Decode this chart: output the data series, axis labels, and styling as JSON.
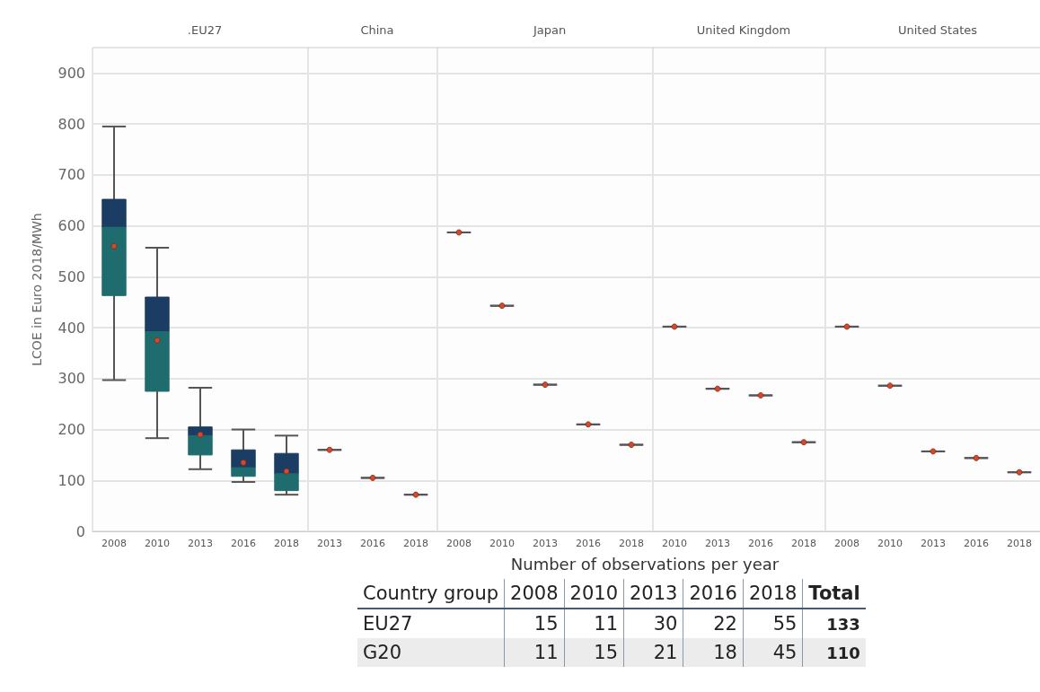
{
  "chart_data": [
    {
      "type": "box",
      "title": ".EU27",
      "ylabel": "LCOE in Euro 2018/MWh",
      "categories": [
        "2008",
        "2010",
        "2013",
        "2016",
        "2018"
      ],
      "color": "#1b3d63",
      "colors": [
        "#1f6c6f",
        "#1f6c6f",
        "#1f6c6f",
        "#1f6c6f",
        "#1f6c6f"
      ],
      "ylim": [
        0,
        950
      ],
      "yticks": [
        0,
        100,
        200,
        300,
        400,
        500,
        600,
        700,
        800,
        900
      ],
      "grid": "y",
      "boxes": [
        {
          "low": 297,
          "q1": 463,
          "median": 597,
          "q3": 652,
          "high": 795,
          "mean": 560
        },
        {
          "low": 183,
          "q1": 275,
          "median": 392,
          "q3": 460,
          "high": 557,
          "mean": 375
        },
        {
          "low": 122,
          "q1": 150,
          "median": 188,
          "q3": 205,
          "high": 282,
          "mean": 190
        },
        {
          "low": 97,
          "q1": 108,
          "median": 125,
          "q3": 160,
          "high": 200,
          "mean": 135
        },
        {
          "low": 72,
          "q1": 80,
          "median": 113,
          "q3": 153,
          "high": 188,
          "mean": 118
        }
      ]
    },
    {
      "type": "box",
      "title": "China",
      "categories": [
        "2013",
        "2016",
        "2018"
      ],
      "ylim": [
        0,
        950
      ],
      "yticks": [
        0,
        100,
        200,
        300,
        400,
        500,
        600,
        700,
        800,
        900
      ],
      "grid": "y",
      "tick_labels": "x",
      "boxes": [
        {
          "low": 160,
          "q1": 160,
          "median": 160,
          "q3": 160,
          "high": 160,
          "mean": 160
        },
        {
          "low": 105,
          "q1": 105,
          "median": 105,
          "q3": 105,
          "high": 105,
          "mean": 105
        },
        {
          "low": 72,
          "q1": 72,
          "median": 72,
          "q3": 72,
          "high": 72,
          "mean": 72
        }
      ]
    },
    {
      "type": "box",
      "title": "Japan",
      "categories": [
        "2008",
        "2010",
        "2013",
        "2016",
        "2018"
      ],
      "ylim": [
        0,
        950
      ],
      "yticks": [
        0,
        100,
        200,
        300,
        400,
        500,
        600,
        700,
        800,
        900
      ],
      "grid": "y",
      "tick_labels": "x",
      "boxes": [
        {
          "low": 587,
          "q1": 587,
          "median": 587,
          "q3": 587,
          "high": 587,
          "mean": 587
        },
        {
          "low": 443,
          "q1": 443,
          "median": 443,
          "q3": 443,
          "high": 443,
          "mean": 443
        },
        {
          "low": 288,
          "q1": 288,
          "median": 288,
          "q3": 288,
          "high": 288,
          "mean": 288
        },
        {
          "low": 210,
          "q1": 210,
          "median": 210,
          "q3": 210,
          "high": 210,
          "mean": 210
        },
        {
          "low": 170,
          "q1": 170,
          "median": 170,
          "q3": 170,
          "high": 170,
          "mean": 170
        }
      ]
    },
    {
      "type": "box",
      "title": "United Kingdom",
      "categories": [
        "2010",
        "2013",
        "2016",
        "2018"
      ],
      "ylim": [
        0,
        950
      ],
      "yticks": [
        0,
        100,
        200,
        300,
        400,
        500,
        600,
        700,
        800,
        900
      ],
      "grid": "y",
      "tick_labels": "x",
      "boxes": [
        {
          "low": 402,
          "q1": 402,
          "median": 402,
          "q3": 402,
          "high": 402,
          "mean": 402
        },
        {
          "low": 280,
          "q1": 280,
          "median": 280,
          "q3": 280,
          "high": 280,
          "mean": 280
        },
        {
          "low": 267,
          "q1": 267,
          "median": 267,
          "q3": 267,
          "high": 267,
          "mean": 267
        },
        {
          "low": 175,
          "q1": 175,
          "median": 175,
          "q3": 175,
          "high": 175,
          "mean": 175
        }
      ]
    },
    {
      "type": "box",
      "title": "United States",
      "categories": [
        "2008",
        "2010",
        "2013",
        "2016",
        "2018"
      ],
      "ylim": [
        0,
        950
      ],
      "yticks": [
        0,
        100,
        200,
        300,
        400,
        500,
        600,
        700,
        800,
        900
      ],
      "grid": "y",
      "tick_labels": "x",
      "boxes": [
        {
          "low": 402,
          "q1": 402,
          "median": 402,
          "q3": 402,
          "high": 402,
          "mean": 402
        },
        {
          "low": 286,
          "q1": 286,
          "median": 286,
          "q3": 286,
          "high": 286,
          "mean": 286
        },
        {
          "low": 157,
          "q1": 157,
          "median": 157,
          "q3": 157,
          "high": 157,
          "mean": 157
        },
        {
          "low": 144,
          "q1": 144,
          "median": 144,
          "q3": 144,
          "high": 144,
          "mean": 144
        },
        {
          "low": 116,
          "q1": 116,
          "median": 116,
          "q3": 116,
          "high": 116,
          "mean": 116
        }
      ]
    },
    {
      "type": "other",
      "title": "Number of observations per year",
      "ylabel": "Country group",
      "categories": [
        "2008",
        "2010",
        "2013",
        "2016",
        "2018",
        "Total"
      ],
      "y_categories": [
        "EU27",
        "G20"
      ],
      "cell_labels": [
        [
          "15",
          "11",
          "30",
          "22",
          "55",
          "133"
        ],
        [
          "11",
          "15",
          "21",
          "18",
          "45",
          "110"
        ]
      ]
    }
  ]
}
